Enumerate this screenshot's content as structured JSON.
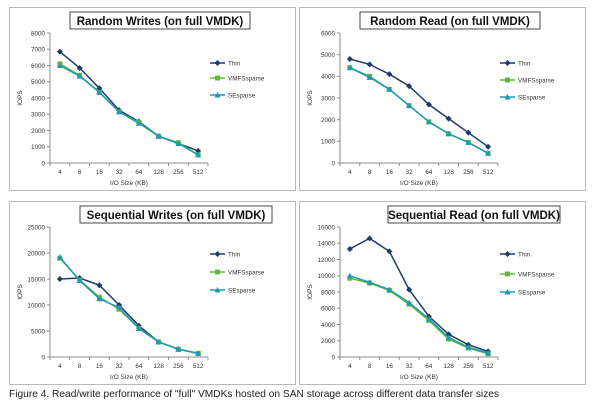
{
  "colors": {
    "thin": "#1f3a6e",
    "vmfsparse": "#5dbb35",
    "sesparse": "#1f99b8",
    "title_border": "#4a4a4a",
    "grid": "#d9d9d9"
  },
  "caption": "Figure 4. Read/write performance of \"full\" VMDKs hosted on SAN storage across different data transfer sizes",
  "chart_data": [
    {
      "type": "line",
      "title": "Random Writes (on full VMDK)",
      "xlabel": "I/O Size (KB)",
      "ylabel": "IOPS",
      "categories": [
        "4",
        "8",
        "16",
        "32",
        "64",
        "128",
        "256",
        "512"
      ],
      "ylim": [
        0,
        8000
      ],
      "yticks": [
        0,
        1000,
        2000,
        3000,
        4000,
        5000,
        6000,
        7000,
        8000
      ],
      "legend_position": "right",
      "grid": false,
      "series": [
        {
          "name": "Thin",
          "values": [
            6850,
            5850,
            4600,
            3250,
            2550,
            1650,
            1200,
            750
          ]
        },
        {
          "name": "VMFSsparse",
          "values": [
            6100,
            5400,
            4350,
            3150,
            2500,
            1650,
            1250,
            500
          ]
        },
        {
          "name": "SEsparse",
          "values": [
            6000,
            5350,
            4350,
            3150,
            2450,
            1650,
            1200,
            500
          ]
        }
      ]
    },
    {
      "type": "line",
      "title": "Random Read (on full VMDK)",
      "xlabel": "I/O Size (KB)",
      "ylabel": "IOPS",
      "categories": [
        "4",
        "8",
        "16",
        "32",
        "64",
        "128",
        "256",
        "512"
      ],
      "ylim": [
        0,
        6000
      ],
      "yticks": [
        0,
        1000,
        2000,
        3000,
        4000,
        5000,
        6000
      ],
      "legend_position": "right",
      "grid": false,
      "series": [
        {
          "name": "Thin",
          "values": [
            4800,
            4550,
            4100,
            3550,
            2700,
            2050,
            1400,
            750
          ]
        },
        {
          "name": "VMFSsparse",
          "values": [
            4400,
            4000,
            3400,
            2650,
            1900,
            1350,
            950,
            450
          ]
        },
        {
          "name": "SEsparse",
          "values": [
            4400,
            3950,
            3400,
            2650,
            1900,
            1350,
            950,
            450
          ]
        }
      ]
    },
    {
      "type": "line",
      "title": "Sequential Writes (on full VMDK)",
      "xlabel": "I/O Size (KB)",
      "ylabel": "IOPS",
      "categories": [
        "4",
        "8",
        "16",
        "32",
        "64",
        "128",
        "256",
        "512"
      ],
      "ylim": [
        0,
        25000
      ],
      "yticks": [
        0,
        5000,
        10000,
        15000,
        20000,
        25000
      ],
      "legend_position": "right",
      "grid": false,
      "series": [
        {
          "name": "Thin",
          "values": [
            15000,
            15200,
            13800,
            10000,
            6000,
            2900,
            1500,
            700
          ]
        },
        {
          "name": "VMFSsparse",
          "values": [
            19000,
            14800,
            11500,
            9200,
            5500,
            2900,
            1500,
            700
          ]
        },
        {
          "name": "SEsparse",
          "values": [
            19200,
            14700,
            11200,
            9500,
            5500,
            2900,
            1500,
            700
          ]
        }
      ]
    },
    {
      "type": "line",
      "title": "Sequential Read (on full VMDK)",
      "xlabel": "I/O Size (KB)",
      "ylabel": "IOPS",
      "categories": [
        "4",
        "8",
        "16",
        "32",
        "64",
        "128",
        "256",
        "512"
      ],
      "ylim": [
        0,
        16000
      ],
      "yticks": [
        0,
        2000,
        4000,
        6000,
        8000,
        10000,
        12000,
        14000,
        16000
      ],
      "legend_position": "right",
      "grid": false,
      "series": [
        {
          "name": "Thin",
          "values": [
            13300,
            14600,
            13000,
            8300,
            5000,
            2800,
            1500,
            700
          ]
        },
        {
          "name": "VMFSsparse",
          "values": [
            9700,
            9100,
            8200,
            6500,
            4500,
            2200,
            1100,
            400
          ]
        },
        {
          "name": "SEsparse",
          "values": [
            10000,
            9200,
            8300,
            6700,
            4700,
            2400,
            1200,
            500
          ]
        }
      ]
    }
  ]
}
